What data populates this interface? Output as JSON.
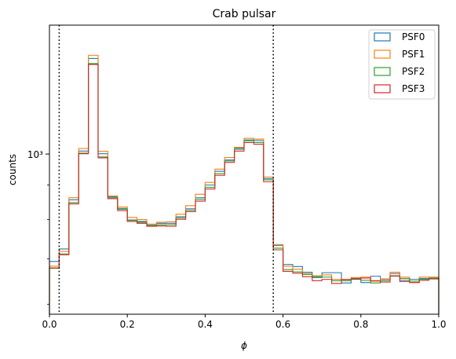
{
  "chart_data": {
    "type": "histogram",
    "title": "Crab pulsar",
    "xlabel": "ϕ",
    "ylabel": "counts",
    "xlim": [
      0,
      1
    ],
    "ylim": [
      580,
      1550
    ],
    "yscale": "log",
    "x_ticks": [
      "0.0",
      "0.2",
      "0.4",
      "0.6",
      "0.8",
      "1.0"
    ],
    "y_tick_labels": [
      "10³"
    ],
    "bin_edges": [
      0,
      0.025,
      0.05,
      0.075,
      0.1,
      0.125,
      0.15,
      0.175,
      0.2,
      0.225,
      0.25,
      0.275,
      0.3,
      0.325,
      0.35,
      0.375,
      0.4,
      0.425,
      0.45,
      0.475,
      0.5,
      0.525,
      0.55,
      0.575,
      0.6,
      0.625,
      0.65,
      0.675,
      0.7,
      0.725,
      0.75,
      0.775,
      0.8,
      0.825,
      0.85,
      0.875,
      0.9,
      0.925,
      0.95,
      0.975,
      1.0
    ],
    "vlines": [
      0.025,
      0.575
    ],
    "legend_position": "upper right",
    "series": [
      {
        "name": "PSF0",
        "color": "#1f77b4",
        "values": [
          694,
          724,
          856,
          1010,
          1384,
          1001,
          865,
          831,
          799,
          795,
          785,
          790,
          790,
          808,
          830,
          862,
          900,
          943,
          980,
          1020,
          1049,
          1047,
          920,
          733,
          687,
          682,
          669,
          657,
          668,
          668,
          645,
          653,
          646,
          660,
          653,
          666,
          648,
          653,
          653,
          656
        ]
      },
      {
        "name": "PSF1",
        "color": "#ff7f0e",
        "values": [
          683,
          718,
          862,
          1019,
          1399,
          1009,
          867,
          835,
          806,
          800,
          788,
          793,
          794,
          815,
          839,
          872,
          908,
          950,
          988,
          1023,
          1055,
          1052,
          925,
          735,
          683,
          676,
          666,
          661,
          663,
          653,
          651,
          657,
          658,
          649,
          654,
          669,
          658,
          646,
          658,
          658
        ]
      },
      {
        "name": "PSF2",
        "color": "#2ca02c",
        "values": [
          678,
          712,
          848,
          1003,
          1360,
          990,
          862,
          829,
          798,
          793,
          784,
          786,
          786,
          805,
          826,
          857,
          893,
          935,
          977,
          1016,
          1046,
          1040,
          916,
          726,
          675,
          670,
          664,
          659,
          658,
          650,
          650,
          655,
          651,
          645,
          650,
          660,
          655,
          649,
          655,
          656
        ]
      },
      {
        "name": "PSF3",
        "color": "#d62728",
        "values": [
          679,
          710,
          844,
          1001,
          1356,
          987,
          859,
          825,
          795,
          790,
          782,
          783,
          782,
          801,
          822,
          852,
          888,
          930,
          972,
          1010,
          1040,
          1034,
          910,
          722,
          671,
          667,
          659,
          650,
          653,
          644,
          653,
          654,
          656,
          650,
          647,
          661,
          651,
          646,
          651,
          654
        ]
      }
    ]
  }
}
